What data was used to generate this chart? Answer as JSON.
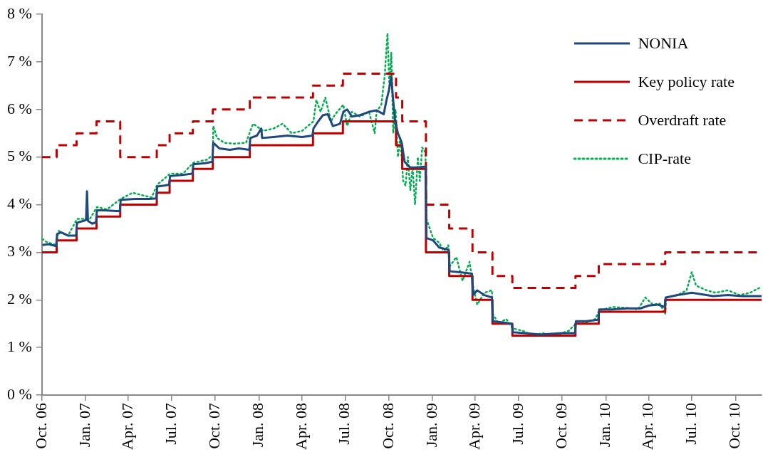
{
  "chart_data": {
    "type": "line",
    "marker": "none",
    "legend": "top right",
    "xlim": [
      "2006-10-01",
      "2010-11-25"
    ],
    "xticks": [
      {
        "value": "2006-10-01",
        "label": "Oct. 06"
      },
      {
        "value": "2007-01-01",
        "label": "Jan. 07"
      },
      {
        "value": "2007-04-01",
        "label": "Apr. 07"
      },
      {
        "value": "2007-07-01",
        "label": "Jul. 07"
      },
      {
        "value": "2007-10-01",
        "label": "Oct. 07"
      },
      {
        "value": "2008-01-01",
        "label": "Jan. 08"
      },
      {
        "value": "2008-04-01",
        "label": "Apr. 08"
      },
      {
        "value": "2008-07-01",
        "label": "Jul. 08"
      },
      {
        "value": "2008-10-01",
        "label": "Oct. 08"
      },
      {
        "value": "2009-01-01",
        "label": "Jan. 09"
      },
      {
        "value": "2009-04-01",
        "label": "Apr. 09"
      },
      {
        "value": "2009-07-01",
        "label": "Jul. 09"
      },
      {
        "value": "2009-10-01",
        "label": "Oct. 09"
      },
      {
        "value": "2010-01-01",
        "label": "Jan. 10"
      },
      {
        "value": "2010-04-01",
        "label": "Apr. 10"
      },
      {
        "value": "2010-07-01",
        "label": "Jul. 10"
      },
      {
        "value": "2010-10-01",
        "label": "Oct. 10"
      }
    ],
    "ylim": [
      0,
      8
    ],
    "yticks": [
      {
        "value": 0,
        "label": "0 %"
      },
      {
        "value": 1,
        "label": "1 %"
      },
      {
        "value": 2,
        "label": "2 %"
      },
      {
        "value": 3,
        "label": "3 %"
      },
      {
        "value": 4,
        "label": "4 %"
      },
      {
        "value": 5,
        "label": "5 %"
      },
      {
        "value": 6,
        "label": "6 %"
      },
      {
        "value": 7,
        "label": "7 %"
      },
      {
        "value": 8,
        "label": "8 %"
      }
    ],
    "series": [
      {
        "name": "NONIA",
        "line_style": "solid",
        "color": "#1f497d",
        "x": [
          "2006-10-02",
          "2006-10-15",
          "2006-10-31",
          "2006-11-02",
          "2006-11-10",
          "2006-11-25",
          "2006-12-12",
          "2006-12-14",
          "2006-12-28",
          "2007-01-02",
          "2007-01-04",
          "2007-01-06",
          "2007-01-15",
          "2007-01-23",
          "2007-01-25",
          "2007-02-10",
          "2007-03-01",
          "2007-03-14",
          "2007-03-16",
          "2007-04-15",
          "2007-05-15",
          "2007-05-30",
          "2007-06-01",
          "2007-06-15",
          "2007-06-26",
          "2007-06-28",
          "2007-07-20",
          "2007-08-14",
          "2007-08-16",
          "2007-09-10",
          "2007-09-25",
          "2007-09-27",
          "2007-10-10",
          "2007-11-01",
          "2007-11-20",
          "2007-12-12",
          "2007-12-14",
          "2007-12-28",
          "2008-01-06",
          "2008-01-08",
          "2008-02-01",
          "2008-03-01",
          "2008-04-01",
          "2008-04-23",
          "2008-04-25",
          "2008-05-05",
          "2008-05-15",
          "2008-05-25",
          "2008-06-05",
          "2008-06-20",
          "2008-06-27",
          "2008-07-05",
          "2008-07-15",
          "2008-08-01",
          "2008-08-20",
          "2008-09-05",
          "2008-09-20",
          "2008-09-26",
          "2008-10-01",
          "2008-10-06",
          "2008-10-09",
          "2008-10-14",
          "2008-10-20",
          "2008-10-28",
          "2008-11-03",
          "2008-11-15",
          "2008-12-01",
          "2008-12-17",
          "2008-12-19",
          "2009-01-02",
          "2009-01-15",
          "2009-02-04",
          "2009-02-06",
          "2009-03-01",
          "2009-03-25",
          "2009-03-27",
          "2009-04-05",
          "2009-04-20",
          "2009-05-06",
          "2009-05-08",
          "2009-06-01",
          "2009-06-17",
          "2009-06-19",
          "2009-07-15",
          "2009-08-15",
          "2009-10-01",
          "2009-10-28",
          "2009-10-30",
          "2009-11-20",
          "2009-12-16",
          "2009-12-18",
          "2010-01-15",
          "2010-02-15",
          "2010-03-15",
          "2010-04-01",
          "2010-04-20",
          "2010-05-05",
          "2010-05-07",
          "2010-06-01",
          "2010-07-01",
          "2010-07-20",
          "2010-08-15",
          "2010-09-15",
          "2010-10-15",
          "2010-11-25"
        ],
        "values": [
          3.15,
          3.17,
          3.13,
          3.38,
          3.42,
          3.35,
          3.35,
          3.62,
          3.66,
          3.68,
          4.28,
          3.66,
          3.6,
          3.63,
          3.88,
          3.88,
          3.87,
          3.86,
          4.1,
          4.12,
          4.12,
          4.13,
          4.38,
          4.4,
          4.42,
          4.6,
          4.62,
          4.65,
          4.85,
          4.87,
          4.9,
          5.3,
          5.18,
          5.15,
          5.18,
          5.15,
          5.4,
          5.45,
          5.6,
          5.4,
          5.42,
          5.45,
          5.42,
          5.45,
          5.6,
          5.75,
          5.88,
          5.9,
          5.65,
          5.7,
          5.95,
          6.0,
          5.85,
          5.88,
          5.95,
          5.98,
          5.9,
          6.2,
          6.4,
          6.7,
          6.3,
          5.75,
          5.5,
          5.3,
          4.9,
          4.78,
          4.78,
          4.8,
          3.3,
          3.25,
          3.1,
          3.05,
          2.6,
          2.58,
          2.55,
          2.1,
          2.2,
          2.1,
          2.05,
          1.55,
          1.52,
          1.5,
          1.32,
          1.3,
          1.27,
          1.3,
          1.3,
          1.55,
          1.55,
          1.58,
          1.8,
          1.8,
          1.82,
          1.82,
          1.88,
          1.9,
          1.85,
          2.05,
          2.1,
          2.15,
          2.12,
          2.08,
          2.1,
          2.08,
          2.08
        ]
      },
      {
        "name": "Key policy rate",
        "type": "step",
        "line_style": "solid",
        "color": "#c00000",
        "x": [
          "2006-10-01",
          "2006-11-01",
          "2006-12-13",
          "2007-01-24",
          "2007-03-15",
          "2007-05-31",
          "2007-06-27",
          "2007-08-15",
          "2007-09-26",
          "2007-12-13",
          "2008-04-24",
          "2008-06-26",
          "2008-10-16",
          "2008-10-29",
          "2008-12-18",
          "2009-02-05",
          "2009-03-26",
          "2009-05-07",
          "2009-06-18",
          "2009-10-29",
          "2009-12-17",
          "2010-05-06",
          "2010-11-25"
        ],
        "values": [
          3.0,
          3.25,
          3.5,
          3.75,
          4.0,
          4.25,
          4.5,
          4.75,
          5.0,
          5.25,
          5.5,
          5.75,
          5.25,
          4.75,
          3.0,
          2.5,
          2.0,
          1.5,
          1.25,
          1.5,
          1.75,
          2.0,
          2.0
        ]
      },
      {
        "name": "Overdraft rate",
        "type": "step",
        "line_style": "dashed",
        "color": "#c00000",
        "x": [
          "2006-10-01",
          "2006-11-01",
          "2006-12-13",
          "2007-01-24",
          "2007-03-15",
          "2007-05-31",
          "2007-06-27",
          "2007-08-15",
          "2007-09-26",
          "2007-12-13",
          "2008-04-24",
          "2008-06-26",
          "2008-10-16",
          "2008-10-29",
          "2008-12-18",
          "2009-02-05",
          "2009-03-26",
          "2009-05-07",
          "2009-06-18",
          "2009-10-29",
          "2009-12-17",
          "2010-05-06",
          "2010-11-25"
        ],
        "values": [
          5.0,
          5.25,
          5.5,
          5.75,
          5.0,
          5.25,
          5.5,
          5.75,
          6.0,
          6.25,
          6.5,
          6.75,
          6.25,
          5.75,
          4.0,
          3.5,
          3.0,
          2.5,
          2.25,
          2.5,
          2.75,
          3.0,
          3.0
        ]
      },
      {
        "name": "CIP-rate",
        "line_style": "dotted",
        "color": "#00b050",
        "x": [
          "2006-10-02",
          "2006-10-10",
          "2006-10-31",
          "2006-11-05",
          "2006-11-25",
          "2006-12-14",
          "2007-01-10",
          "2007-01-25",
          "2007-02-15",
          "2007-03-16",
          "2007-04-10",
          "2007-05-20",
          "2007-06-01",
          "2007-06-28",
          "2007-07-25",
          "2007-08-16",
          "2007-09-15",
          "2007-09-26",
          "2007-09-27",
          "2007-10-05",
          "2007-10-20",
          "2007-11-10",
          "2007-12-05",
          "2007-12-14",
          "2007-12-20",
          "2008-01-10",
          "2008-02-01",
          "2008-02-20",
          "2008-03-10",
          "2008-04-01",
          "2008-04-25",
          "2008-05-01",
          "2008-05-10",
          "2008-05-20",
          "2008-06-01",
          "2008-06-10",
          "2008-06-27",
          "2008-07-05",
          "2008-07-15",
          "2008-08-01",
          "2008-08-20",
          "2008-09-01",
          "2008-09-05",
          "2008-09-15",
          "2008-09-22",
          "2008-09-28",
          "2008-10-02",
          "2008-10-06",
          "2008-10-10",
          "2008-10-15",
          "2008-10-20",
          "2008-10-25",
          "2008-10-31",
          "2008-11-05",
          "2008-11-10",
          "2008-11-15",
          "2008-11-20",
          "2008-11-25",
          "2008-12-01",
          "2008-12-05",
          "2008-12-10",
          "2008-12-17",
          "2008-12-19",
          "2009-01-02",
          "2009-01-15",
          "2009-01-25",
          "2009-02-03",
          "2009-02-06",
          "2009-02-20",
          "2009-03-05",
          "2009-03-20",
          "2009-03-27",
          "2009-04-05",
          "2009-04-20",
          "2009-05-06",
          "2009-05-08",
          "2009-05-20",
          "2009-06-05",
          "2009-06-19",
          "2009-07-10",
          "2009-08-01",
          "2009-08-20",
          "2009-09-15",
          "2009-10-15",
          "2009-10-30",
          "2009-11-20",
          "2009-12-10",
          "2009-12-18",
          "2010-01-15",
          "2010-02-15",
          "2010-03-10",
          "2010-03-25",
          "2010-04-10",
          "2010-04-25",
          "2010-05-06",
          "2010-05-08",
          "2010-06-01",
          "2010-06-20",
          "2010-07-01",
          "2010-07-10",
          "2010-08-01",
          "2010-08-20",
          "2010-09-15",
          "2010-10-10",
          "2010-11-01",
          "2010-11-20"
        ],
        "values": [
          3.28,
          3.22,
          3.15,
          3.45,
          3.35,
          3.7,
          3.7,
          3.95,
          3.9,
          4.12,
          4.25,
          4.15,
          4.42,
          4.65,
          4.65,
          4.88,
          4.95,
          5.05,
          5.65,
          5.4,
          5.3,
          5.28,
          5.3,
          5.55,
          5.7,
          5.55,
          5.6,
          5.7,
          5.5,
          5.55,
          5.75,
          6.2,
          5.95,
          6.25,
          5.75,
          5.9,
          6.1,
          5.65,
          5.95,
          5.85,
          5.95,
          5.5,
          5.95,
          6.1,
          6.7,
          7.6,
          6.5,
          7.2,
          5.5,
          6.0,
          5.0,
          5.4,
          4.5,
          4.4,
          5.0,
          4.3,
          4.8,
          4.0,
          5.0,
          4.5,
          5.2,
          5.1,
          3.7,
          3.3,
          3.2,
          3.0,
          3.15,
          2.7,
          2.9,
          2.4,
          2.8,
          2.3,
          1.9,
          2.15,
          2.2,
          1.7,
          1.5,
          1.6,
          1.4,
          1.35,
          1.25,
          1.3,
          1.25,
          1.35,
          1.5,
          1.52,
          1.6,
          1.78,
          1.85,
          1.83,
          1.8,
          2.05,
          1.9,
          1.92,
          1.7,
          2.05,
          2.1,
          2.2,
          2.58,
          2.3,
          2.2,
          2.15,
          2.2,
          2.1,
          2.15,
          2.25
        ]
      }
    ]
  }
}
